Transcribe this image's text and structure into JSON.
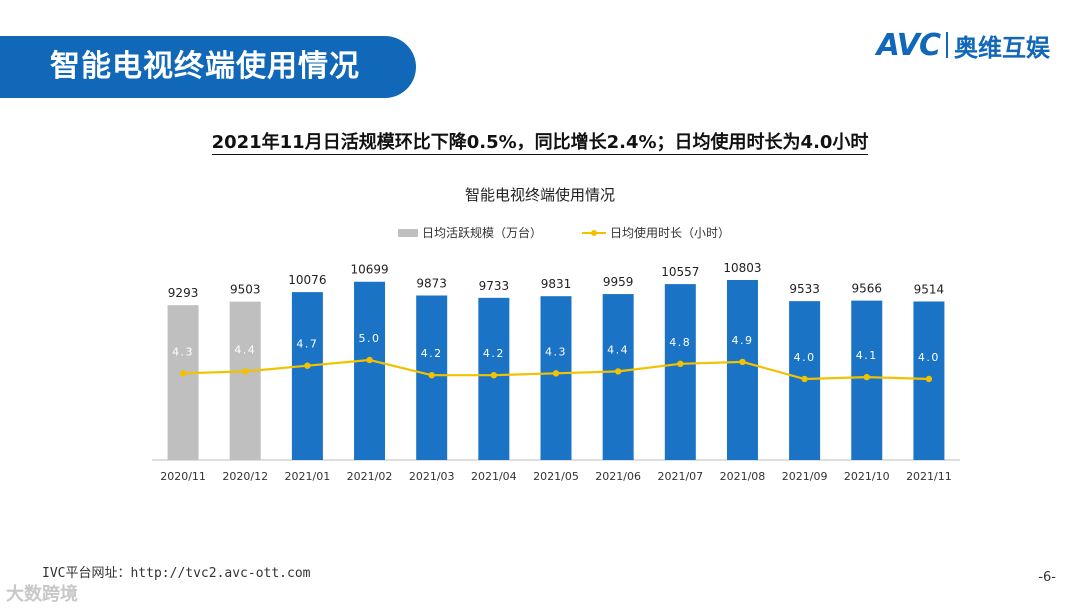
{
  "header": {
    "title": "智能电视终端使用情况"
  },
  "logo": {
    "mark": "AVC",
    "name": "奥维互娱"
  },
  "headline": "2021年11月日活规模环比下降0.5%，同比增长2.4%；日均使用时长为4.0小时",
  "footer": {
    "url": "IVC平台网址：http://tvc2.avc-ott.com",
    "page": "-6-",
    "stamp": "大数跨境"
  },
  "colors": {
    "accent": "#1167b8",
    "bar_current": "#1a73c4",
    "bar_prior": "#bfbfbf",
    "line": "#f2c200"
  },
  "chart_data": {
    "type": "bar+line",
    "title": "智能电视终端使用情况",
    "categories": [
      "2020/11",
      "2020/12",
      "2021/01",
      "2021/02",
      "2021/03",
      "2021/04",
      "2021/05",
      "2021/06",
      "2021/07",
      "2021/08",
      "2021/09",
      "2021/10",
      "2021/11"
    ],
    "series": [
      {
        "name": "日均活跃规模（万台）",
        "type": "bar",
        "values": [
          9293,
          9503,
          10076,
          10699,
          9873,
          9733,
          9831,
          9959,
          10557,
          10803,
          9533,
          9566,
          9514
        ],
        "colors": [
          "#bfbfbf",
          "#bfbfbf",
          "#1a73c4",
          "#1a73c4",
          "#1a73c4",
          "#1a73c4",
          "#1a73c4",
          "#1a73c4",
          "#1a73c4",
          "#1a73c4",
          "#1a73c4",
          "#1a73c4",
          "#1a73c4"
        ]
      },
      {
        "name": "日均使用时长（小时）",
        "type": "line",
        "values": [
          4.3,
          4.4,
          4.7,
          5.0,
          4.2,
          4.2,
          4.3,
          4.4,
          4.8,
          4.9,
          4.0,
          4.1,
          4.0
        ]
      }
    ],
    "bar_axis_range": [
      0,
      11000
    ],
    "line_axis_range": [
      0,
      11
    ],
    "legend_position": "top-center",
    "grid": false
  }
}
